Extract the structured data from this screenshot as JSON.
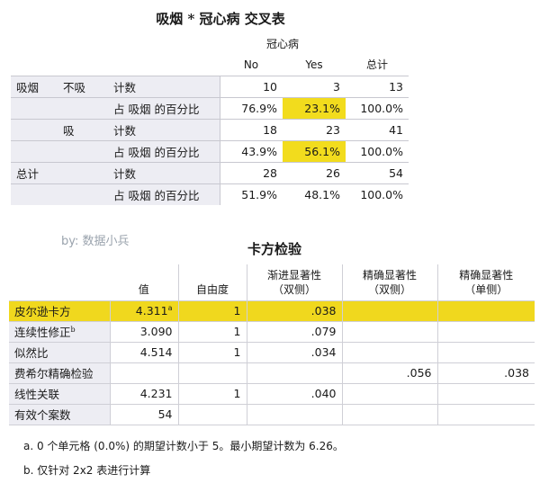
{
  "crosstab": {
    "title": "吸烟 * 冠心病 交叉表",
    "col_group": "冠心病",
    "col_no": "No",
    "col_yes": "Yes",
    "col_total": "总计",
    "row_var": "吸烟",
    "groups": [
      {
        "label": "不吸",
        "count_label": "计数",
        "count": [
          "10",
          "3",
          "13"
        ],
        "pct_label": "占 吸烟 的百分比",
        "pct": [
          "76.9%",
          "23.1%",
          "100.0%"
        ]
      },
      {
        "label": "吸",
        "count_label": "计数",
        "count": [
          "18",
          "23",
          "41"
        ],
        "pct_label": "占 吸烟 的百分比",
        "pct": [
          "43.9%",
          "56.1%",
          "100.0%"
        ]
      }
    ],
    "total": {
      "label": "总计",
      "count_label": "计数",
      "count": [
        "28",
        "26",
        "54"
      ],
      "pct_label": "占 吸烟 的百分比",
      "pct": [
        "51.9%",
        "48.1%",
        "100.0%"
      ]
    }
  },
  "watermark": "by: 数据小兵",
  "chi": {
    "title": "卡方检验",
    "headers": {
      "value": "值",
      "df": "自由度",
      "asym_1": "渐进显著性",
      "asym_2": "（双侧）",
      "exact2_1": "精确显著性",
      "exact2_2": "（双侧）",
      "exact1_1": "精确显著性",
      "exact1_2": "（单侧）"
    },
    "rows": [
      {
        "label": "皮尔逊卡方",
        "sup": "",
        "value": "4.311",
        "value_sup": "a",
        "df": "1",
        "asym": ".038",
        "exact2": "",
        "exact1": ""
      },
      {
        "label": "连续性修正",
        "sup": "b",
        "value": "3.090",
        "value_sup": "",
        "df": "1",
        "asym": ".079",
        "exact2": "",
        "exact1": ""
      },
      {
        "label": "似然比",
        "sup": "",
        "value": "4.514",
        "value_sup": "",
        "df": "1",
        "asym": ".034",
        "exact2": "",
        "exact1": ""
      },
      {
        "label": "费希尔精确检验",
        "sup": "",
        "value": "",
        "value_sup": "",
        "df": "",
        "asym": "",
        "exact2": ".056",
        "exact1": ".038"
      },
      {
        "label": "线性关联",
        "sup": "",
        "value": "4.231",
        "value_sup": "",
        "df": "1",
        "asym": ".040",
        "exact2": "",
        "exact1": ""
      },
      {
        "label": "有效个案数",
        "sup": "",
        "value": "54",
        "value_sup": "",
        "df": "",
        "asym": "",
        "exact2": "",
        "exact1": ""
      }
    ],
    "footnote_a": "a. 0 个单元格 (0.0%) 的期望计数小于 5。最小期望计数为 6.26。",
    "footnote_b": "b. 仅针对 2x2 表进行计算"
  },
  "colors": {
    "highlight": "#f0d81e",
    "label_bg": "#ededf3"
  }
}
